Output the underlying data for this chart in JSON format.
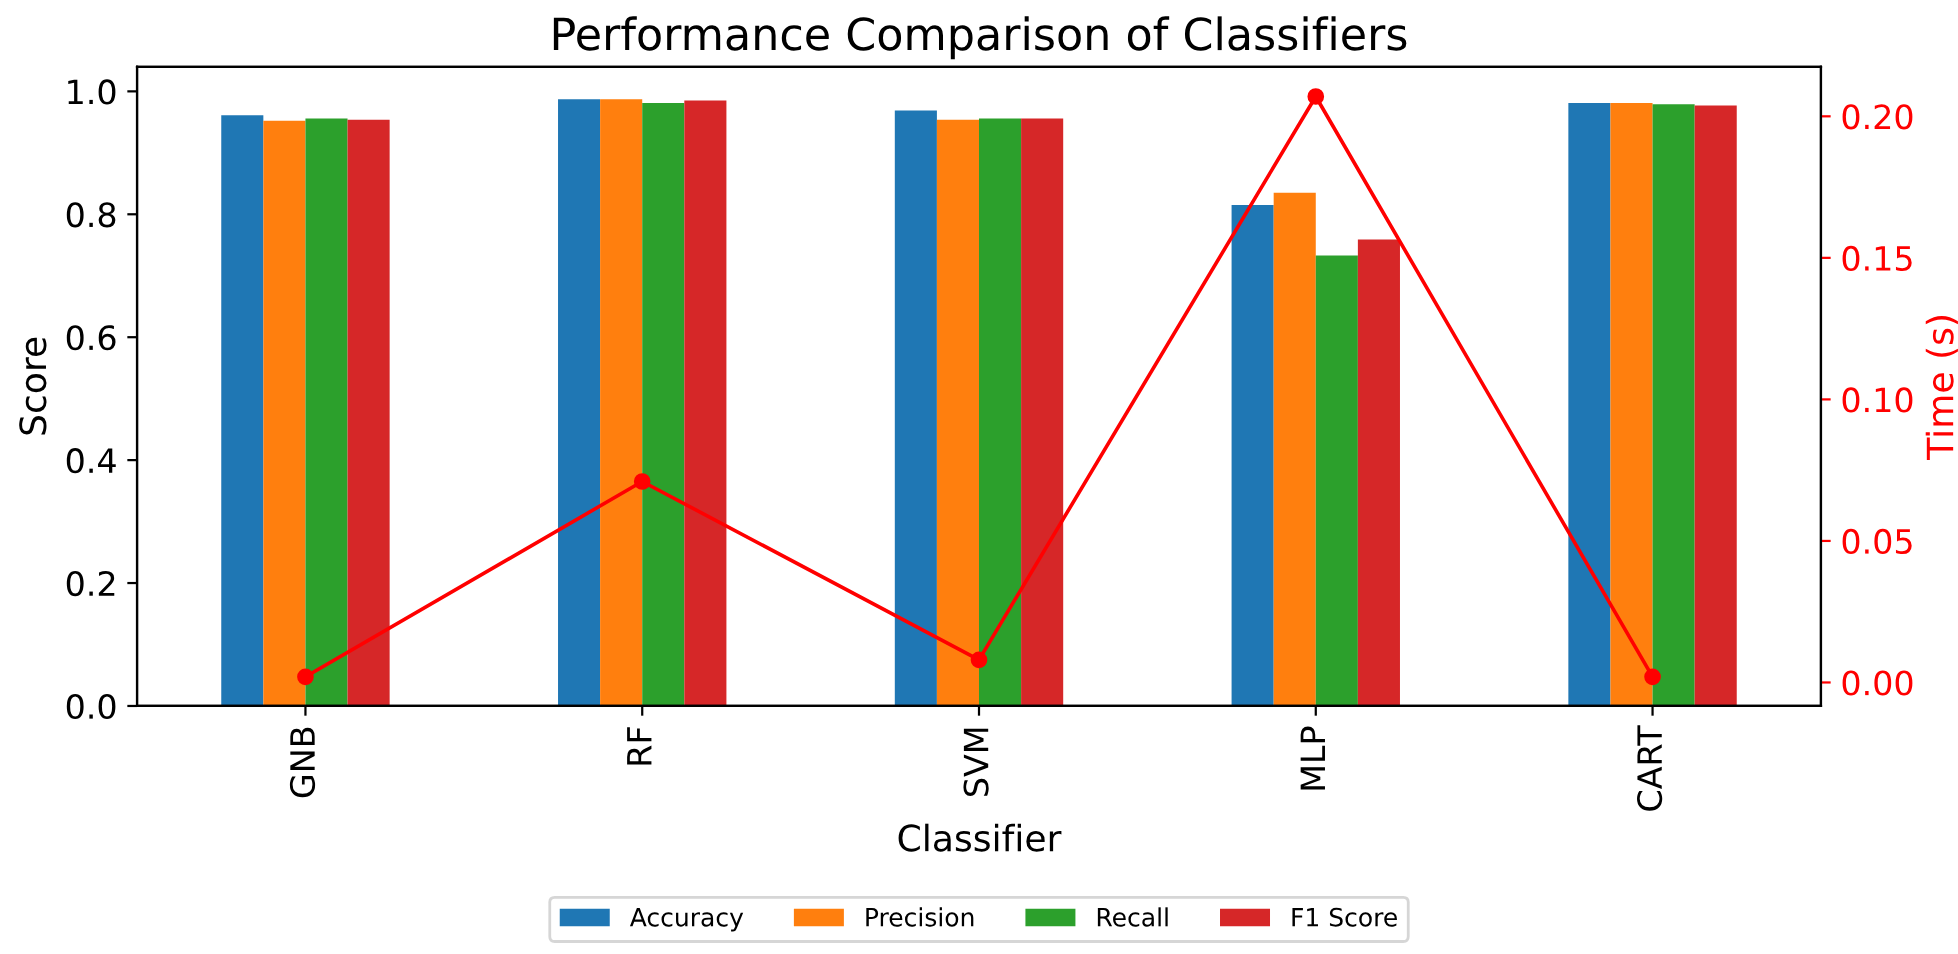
{
  "chart_data": {
    "type": "bar",
    "title": "Performance Comparison of Classifiers",
    "xlabel": "Classifier",
    "ylabel": "Score",
    "y2label": "Time (s)",
    "categories": [
      "GNB",
      "RF",
      "SVM",
      "MLP",
      "CART"
    ],
    "series": [
      {
        "name": "Accuracy",
        "color": "#1f77b4",
        "values": [
          0.961,
          0.987,
          0.969,
          0.815,
          0.981
        ]
      },
      {
        "name": "Precision",
        "color": "#ff7f0e",
        "values": [
          0.952,
          0.987,
          0.954,
          0.835,
          0.981
        ]
      },
      {
        "name": "Recall",
        "color": "#2ca02c",
        "values": [
          0.956,
          0.981,
          0.956,
          0.733,
          0.979
        ]
      },
      {
        "name": "F1 Score",
        "color": "#d62728",
        "values": [
          0.954,
          0.985,
          0.956,
          0.759,
          0.977
        ]
      },
      {
        "type": "line",
        "axis": "y2",
        "color": "#ff0000",
        "marker": "circle",
        "values": [
          0.002,
          0.071,
          0.008,
          0.207,
          0.002
        ]
      }
    ],
    "ylim": [
      0,
      1.04
    ],
    "yticks": [
      {
        "value": 0,
        "label": "0.0"
      },
      {
        "value": 0.2,
        "label": "0.2"
      },
      {
        "value": 0.4,
        "label": "0.4"
      },
      {
        "value": 0.6,
        "label": "0.6"
      },
      {
        "value": 0.8,
        "label": "0.8"
      },
      {
        "value": 1,
        "label": "1.0"
      }
    ],
    "y2lim": [
      -0.0083,
      0.2175
    ],
    "y2ticks": [
      {
        "value": 0,
        "label": "0.00"
      },
      {
        "value": 0.05,
        "label": "0.05"
      },
      {
        "value": 0.1,
        "label": "0.10"
      },
      {
        "value": 0.15,
        "label": "0.15"
      },
      {
        "value": 0.2,
        "label": "0.20"
      }
    ],
    "legend": "bottom",
    "grid": false
  }
}
